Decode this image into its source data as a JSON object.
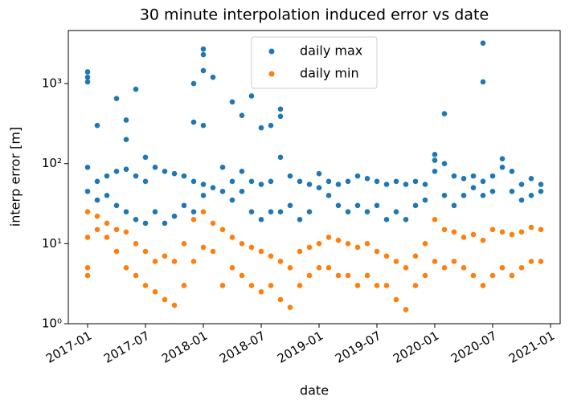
{
  "chart_data": {
    "type": "scatter",
    "title": "30 minute interpolation induced error vs date",
    "xlabel": "date",
    "ylabel": "interp error [m]",
    "yscale": "log",
    "legend": "upper center",
    "xlim": [
      "2016-11",
      "2021-02"
    ],
    "xticks": [
      "2017-01",
      "2017-07",
      "2018-01",
      "2018-07",
      "2019-01",
      "2019-07",
      "2020-01",
      "2020-07",
      "2021-01"
    ],
    "ylim": [
      1,
      4600
    ],
    "yticks": [
      {
        "value": 1,
        "label": "10⁰"
      },
      {
        "value": 10,
        "label": "10¹"
      },
      {
        "value": 100,
        "label": "10²"
      },
      {
        "value": 1000,
        "label": "10³"
      }
    ],
    "series": [
      {
        "name": "daily max",
        "color": "#1f77b4",
        "x": [
          "2017-01",
          "2017-01",
          "2017-01",
          "2017-01",
          "2017-01",
          "2017-02",
          "2017-02",
          "2017-02",
          "2017-03",
          "2017-03",
          "2017-04",
          "2017-04",
          "2017-04",
          "2017-05",
          "2017-05",
          "2017-05",
          "2017-05",
          "2017-06",
          "2017-06",
          "2017-06",
          "2017-07",
          "2017-07",
          "2017-07",
          "2017-08",
          "2017-08",
          "2017-09",
          "2017-09",
          "2017-10",
          "2017-10",
          "2017-11",
          "2017-11",
          "2017-12",
          "2017-12",
          "2017-12",
          "2017-12",
          "2018-01",
          "2018-01",
          "2018-01",
          "2018-01",
          "2018-01",
          "2018-01",
          "2018-02",
          "2018-02",
          "2018-03",
          "2018-03",
          "2018-04",
          "2018-04",
          "2018-04",
          "2018-05",
          "2018-05",
          "2018-05",
          "2018-06",
          "2018-06",
          "2018-06",
          "2018-07",
          "2018-07",
          "2018-07",
          "2018-08",
          "2018-08",
          "2018-08",
          "2018-09",
          "2018-09",
          "2018-09",
          "2018-09",
          "2018-10",
          "2018-10",
          "2018-11",
          "2018-11",
          "2018-12",
          "2018-12",
          "2019-01",
          "2019-01",
          "2019-02",
          "2019-02",
          "2019-03",
          "2019-03",
          "2019-04",
          "2019-04",
          "2019-05",
          "2019-05",
          "2019-06",
          "2019-06",
          "2019-07",
          "2019-07",
          "2019-08",
          "2019-08",
          "2019-09",
          "2019-09",
          "2019-10",
          "2019-10",
          "2019-11",
          "2019-11",
          "2019-12",
          "2019-12",
          "2020-01",
          "2020-01",
          "2020-01",
          "2020-02",
          "2020-02",
          "2020-02",
          "2020-03",
          "2020-03",
          "2020-04",
          "2020-04",
          "2020-05",
          "2020-05",
          "2020-06",
          "2020-06",
          "2020-06",
          "2020-06",
          "2020-07",
          "2020-07",
          "2020-08",
          "2020-08",
          "2020-09",
          "2020-09",
          "2020-10",
          "2020-10",
          "2020-11",
          "2020-11",
          "2020-12",
          "2020-12"
        ],
        "values": [
          1400,
          1200,
          1050,
          90,
          45,
          300,
          60,
          35,
          70,
          40,
          650,
          80,
          30,
          350,
          200,
          85,
          25,
          850,
          70,
          20,
          120,
          60,
          18,
          90,
          25,
          80,
          18,
          75,
          22,
          70,
          30,
          1000,
          330,
          60,
          25,
          2700,
          2300,
          1450,
          300,
          55,
          40,
          1200,
          50,
          90,
          45,
          590,
          60,
          35,
          400,
          80,
          45,
          700,
          60,
          25,
          280,
          55,
          20,
          300,
          60,
          25,
          480,
          390,
          120,
          25,
          70,
          30,
          60,
          20,
          55,
          25,
          75,
          50,
          60,
          40,
          55,
          30,
          60,
          25,
          70,
          30,
          65,
          25,
          60,
          30,
          55,
          20,
          60,
          25,
          55,
          20,
          60,
          30,
          55,
          35,
          130,
          110,
          80,
          420,
          100,
          40,
          70,
          30,
          65,
          40,
          70,
          50,
          3200,
          1050,
          60,
          40,
          70,
          45,
          115,
          90,
          80,
          45,
          55,
          35,
          65,
          40,
          55,
          45
        ]
      },
      {
        "name": "daily min",
        "color": "#ff7f0e",
        "x": [
          "2017-01",
          "2017-01",
          "2017-01",
          "2017-01",
          "2017-02",
          "2017-02",
          "2017-03",
          "2017-03",
          "2017-04",
          "2017-04",
          "2017-05",
          "2017-05",
          "2017-06",
          "2017-06",
          "2017-07",
          "2017-07",
          "2017-08",
          "2017-08",
          "2017-09",
          "2017-09",
          "2017-10",
          "2017-10",
          "2017-11",
          "2017-11",
          "2017-12",
          "2017-12",
          "2018-01",
          "2018-01",
          "2018-02",
          "2018-02",
          "2018-03",
          "2018-03",
          "2018-04",
          "2018-04",
          "2018-05",
          "2018-05",
          "2018-06",
          "2018-06",
          "2018-07",
          "2018-07",
          "2018-08",
          "2018-08",
          "2018-09",
          "2018-09",
          "2018-10",
          "2018-10",
          "2018-11",
          "2018-11",
          "2018-12",
          "2018-12",
          "2019-01",
          "2019-01",
          "2019-02",
          "2019-02",
          "2019-03",
          "2019-03",
          "2019-04",
          "2019-04",
          "2019-05",
          "2019-05",
          "2019-06",
          "2019-06",
          "2019-07",
          "2019-07",
          "2019-08",
          "2019-08",
          "2019-09",
          "2019-09",
          "2019-10",
          "2019-10",
          "2019-11",
          "2019-11",
          "2019-12",
          "2019-12",
          "2020-01",
          "2020-01",
          "2020-02",
          "2020-02",
          "2020-03",
          "2020-03",
          "2020-04",
          "2020-04",
          "2020-05",
          "2020-05",
          "2020-06",
          "2020-06",
          "2020-07",
          "2020-07",
          "2020-08",
          "2020-08",
          "2020-09",
          "2020-09",
          "2020-10",
          "2020-10",
          "2020-11",
          "2020-11",
          "2020-12",
          "2020-12"
        ],
        "values": [
          25,
          12,
          5,
          4,
          22,
          15,
          18,
          12,
          15,
          8,
          14,
          5,
          10,
          4,
          8,
          3,
          6,
          2.5,
          7,
          2,
          6,
          1.7,
          10,
          3,
          20,
          6,
          25,
          9,
          18,
          8,
          15,
          3,
          12,
          5,
          10,
          4,
          9,
          3,
          8,
          2.5,
          7,
          3,
          6,
          2,
          5,
          1.6,
          8,
          3,
          9,
          4,
          10,
          5,
          12,
          5,
          11,
          4,
          10,
          4,
          9,
          3,
          10,
          4,
          8,
          3,
          7,
          3,
          6,
          2,
          5,
          1.5,
          7,
          3,
          10,
          4,
          20,
          6,
          15,
          5,
          14,
          6,
          12,
          5,
          13,
          4,
          11,
          3,
          15,
          4,
          14,
          5,
          13,
          4,
          14,
          5,
          16,
          6,
          15,
          6
        ]
      }
    ]
  }
}
